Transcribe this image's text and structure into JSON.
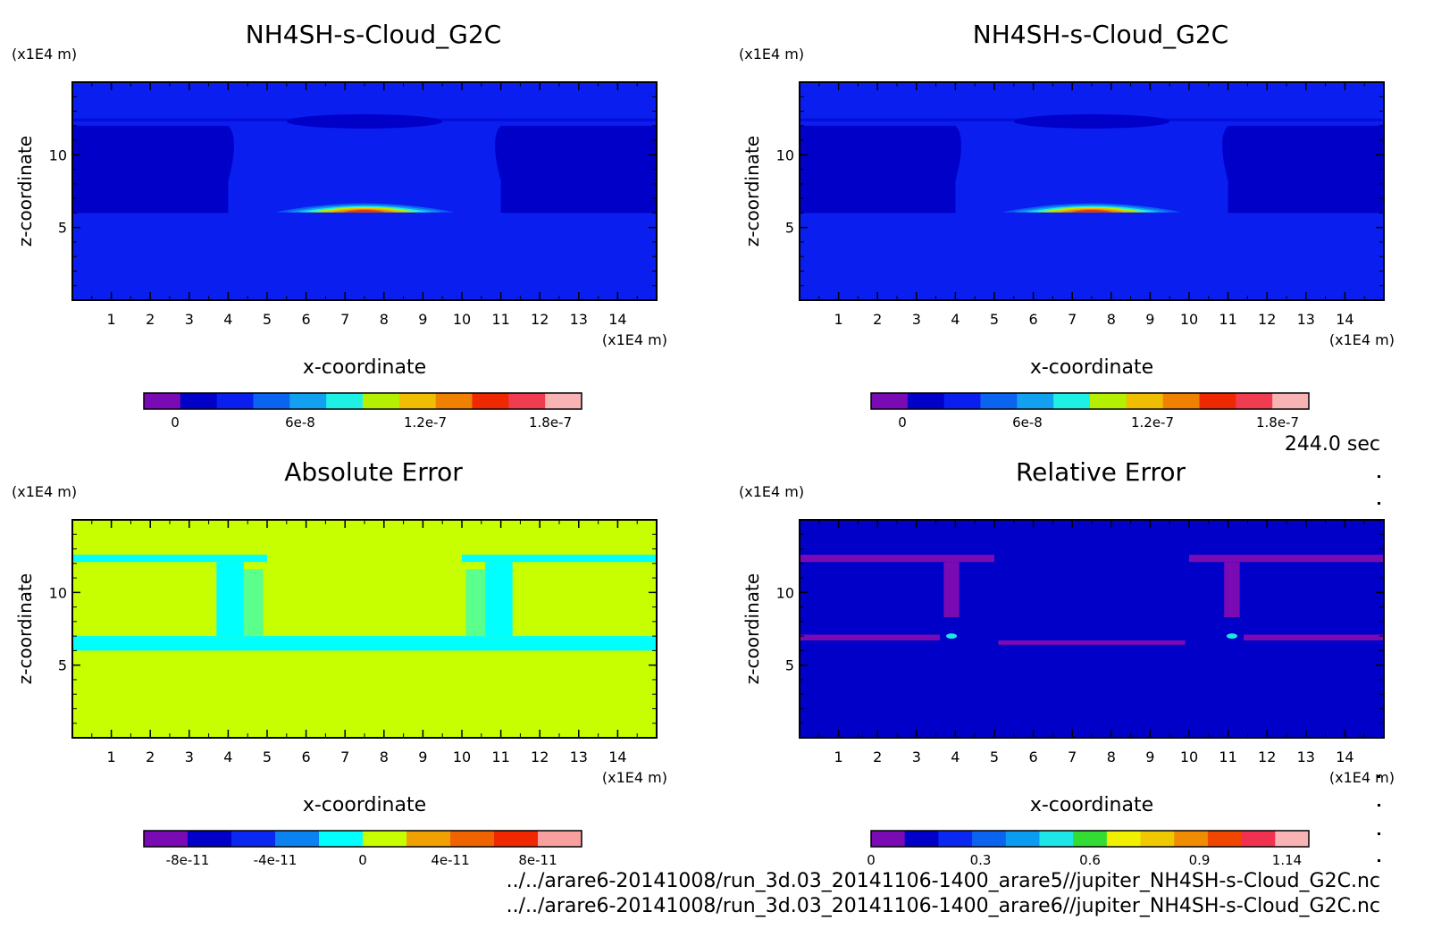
{
  "time_label": "244.0 sec",
  "footer": {
    "line1": "../../arare6-20141008/run_3d.03_20141106-1400_arare5//jupiter_NH4SH-s-Cloud_G2C.nc",
    "line2": "../../arare6-20141008/run_3d.03_20141106-1400_arare6//jupiter_NH4SH-s-Cloud_G2C.nc"
  },
  "colors": {
    "palette11": [
      "#7a0ab4",
      "#0000c8",
      "#0a1ef0",
      "#0a64f0",
      "#12a0f0",
      "#1ef0e6",
      "#b4f000",
      "#f0be00",
      "#f08000",
      "#f02800",
      "#f03c50",
      "#f8b4b4"
    ],
    "palette10": [
      "#7a0ab4",
      "#0000c8",
      "#0a28f0",
      "#0a82f0",
      "#00ffff",
      "#c8ff00",
      "#f0a000",
      "#f06400",
      "#f02800",
      "#f8a0a0"
    ],
    "palette12": [
      "#7a0ab4",
      "#0000c8",
      "#0a28f0",
      "#0a64f0",
      "#0a9cf0",
      "#1ee6e6",
      "#32dc32",
      "#f0f000",
      "#f0c800",
      "#f08c00",
      "#f04600",
      "#f03250",
      "#f8b4b4"
    ]
  },
  "chart_data": [
    {
      "type": "heatmap",
      "title": "NH4SH-s-Cloud_G2C",
      "xlabel": "x-coordinate",
      "ylabel": "z-coordinate",
      "x_unit": "(x1E4 m)",
      "y_unit": "(x1E4 m)",
      "xlim": [
        0,
        15
      ],
      "ylim": [
        0,
        15
      ],
      "x_ticks": [
        "1",
        "2",
        "3",
        "4",
        "5",
        "6",
        "7",
        "8",
        "9",
        "10",
        "11",
        "12",
        "13",
        "14"
      ],
      "y_ticks": [
        "5",
        "10"
      ],
      "colorbar_ticks": [
        "0",
        "6e-8",
        "1.2e-7",
        "1.8e-7"
      ],
      "colorbar_range": [
        -1.5e-08,
        1.95e-07
      ],
      "peak_value": 1.8e-07,
      "peak_location": {
        "x": 7.5,
        "z": 6.5
      }
    },
    {
      "type": "heatmap",
      "title": "NH4SH-s-Cloud_G2C",
      "xlabel": "x-coordinate",
      "ylabel": "z-coordinate",
      "x_unit": "(x1E4 m)",
      "y_unit": "(x1E4 m)",
      "xlim": [
        0,
        15
      ],
      "ylim": [
        0,
        15
      ],
      "x_ticks": [
        "1",
        "2",
        "3",
        "4",
        "5",
        "6",
        "7",
        "8",
        "9",
        "10",
        "11",
        "12",
        "13",
        "14"
      ],
      "y_ticks": [
        "5",
        "10"
      ],
      "colorbar_ticks": [
        "0",
        "6e-8",
        "1.2e-7",
        "1.8e-7"
      ],
      "colorbar_range": [
        -1.5e-08,
        1.95e-07
      ],
      "peak_value": 1.8e-07,
      "peak_location": {
        "x": 7.5,
        "z": 6.5
      }
    },
    {
      "type": "heatmap",
      "title": "Absolute Error",
      "xlabel": "x-coordinate",
      "ylabel": "z-coordinate",
      "x_unit": "(x1E4 m)",
      "y_unit": "(x1E4 m)",
      "xlim": [
        0,
        15
      ],
      "ylim": [
        0,
        15
      ],
      "x_ticks": [
        "1",
        "2",
        "3",
        "4",
        "5",
        "6",
        "7",
        "8",
        "9",
        "10",
        "11",
        "12",
        "13",
        "14"
      ],
      "y_ticks": [
        "5",
        "10"
      ],
      "colorbar_ticks": [
        "-8e-11",
        "-4e-11",
        "0",
        "4e-11",
        "8e-11"
      ],
      "colorbar_range": [
        -1e-10,
        1e-10
      ],
      "background_value": 1e-11
    },
    {
      "type": "heatmap",
      "title": "Relative Error",
      "xlabel": "x-coordinate",
      "ylabel": "z-coordinate",
      "x_unit": "(x1E4 m)",
      "y_unit": "(x1E4 m)",
      "xlim": [
        0,
        15
      ],
      "ylim": [
        0,
        15
      ],
      "x_ticks": [
        "1",
        "2",
        "3",
        "4",
        "5",
        "6",
        "7",
        "8",
        "9",
        "10",
        "11",
        "12",
        "13",
        "14"
      ],
      "y_ticks": [
        "5",
        "10"
      ],
      "colorbar_ticks": [
        "0",
        "0.3",
        "0.6",
        "0.9",
        "1.14"
      ],
      "colorbar_range": [
        0,
        1.2
      ],
      "background_value": 0.05
    }
  ]
}
